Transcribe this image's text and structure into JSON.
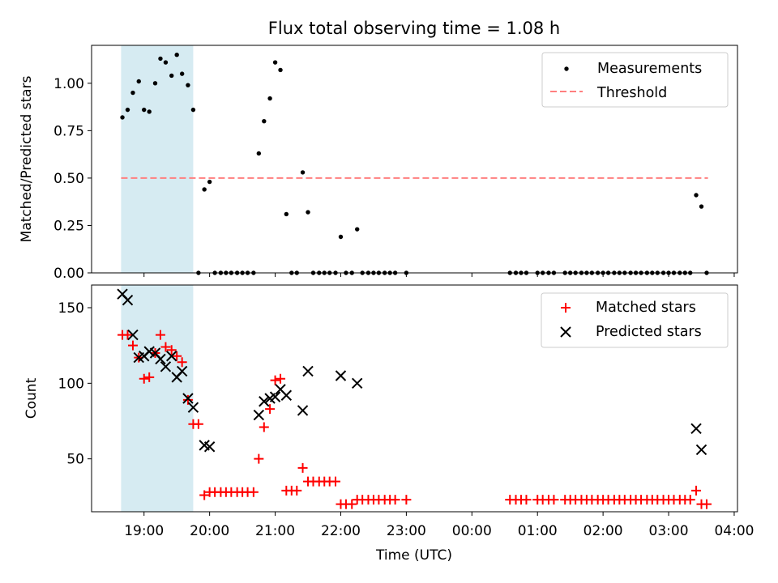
{
  "title": "Flux total observing time = 1.08 h",
  "colors": {
    "measurement": "#000000",
    "threshold": "#ff7f7f",
    "matched": "#ff0000",
    "predicted": "#000000",
    "shade": "#add8e6"
  },
  "xaxis": {
    "label": "Time (UTC)",
    "ticks": [
      "19:00",
      "20:00",
      "21:00",
      "22:00",
      "23:00",
      "00:00",
      "01:00",
      "02:00",
      "03:00",
      "04:00"
    ],
    "tick_hours": [
      19,
      20,
      21,
      22,
      23,
      24,
      25,
      26,
      27,
      28
    ],
    "range": [
      18.2,
      28.05
    ],
    "shaded_interval": [
      18.65,
      19.75
    ]
  },
  "chart_data": [
    {
      "type": "scatter",
      "id": "ratio",
      "ylabel": "Matched/Predicted stars",
      "ylim": [
        0,
        1.2
      ],
      "yticks": [
        "0.00",
        "0.25",
        "0.50",
        "0.75",
        "1.00"
      ],
      "ytick_values": [
        0,
        0.25,
        0.5,
        0.75,
        1.0
      ],
      "legend_position": "upper right",
      "legend": {
        "measurements": "Measurements",
        "threshold": "Threshold"
      },
      "threshold": {
        "value": 0.5,
        "x_start": 18.65,
        "x_end": 27.6
      },
      "series": [
        {
          "name": "Measurements",
          "x": [
            18.67,
            18.75,
            18.83,
            18.92,
            19.0,
            19.08,
            19.17,
            19.25,
            19.33,
            19.42,
            19.5,
            19.58,
            19.67,
            19.75,
            19.83,
            19.92,
            20.0,
            20.08,
            20.17,
            20.25,
            20.33,
            20.42,
            20.5,
            20.58,
            20.67,
            20.75,
            20.83,
            20.92,
            21.0,
            21.08,
            21.17,
            21.25,
            21.33,
            21.42,
            21.5,
            21.58,
            21.67,
            21.75,
            21.83,
            21.92,
            22.0,
            22.08,
            22.17,
            22.25,
            22.33,
            22.42,
            22.5,
            22.58,
            22.67,
            22.75,
            22.83,
            23.0,
            24.58,
            24.67,
            24.75,
            24.83,
            25.0,
            25.08,
            25.17,
            25.25,
            25.42,
            25.5,
            25.58,
            25.67,
            25.75,
            25.83,
            25.92,
            26.0,
            26.08,
            26.17,
            26.25,
            26.33,
            26.42,
            26.5,
            26.58,
            26.67,
            26.75,
            26.83,
            26.92,
            27.0,
            27.08,
            27.17,
            27.25,
            27.33,
            27.42,
            27.5,
            27.58
          ],
          "y": [
            0.82,
            0.86,
            0.95,
            1.01,
            0.86,
            0.85,
            1.0,
            1.13,
            1.11,
            1.04,
            1.15,
            1.05,
            0.99,
            0.86,
            0.0,
            0.44,
            0.48,
            0.0,
            0.0,
            0.0,
            0.0,
            0.0,
            0.0,
            0.0,
            0.0,
            0.63,
            0.8,
            0.92,
            1.11,
            1.07,
            0.31,
            0.0,
            0.0,
            0.53,
            0.32,
            0.0,
            0.0,
            0.0,
            0.0,
            0.0,
            0.19,
            0.0,
            0.0,
            0.23,
            0.0,
            0.0,
            0.0,
            0.0,
            0.0,
            0.0,
            0.0,
            0.0,
            0.0,
            0.0,
            0.0,
            0.0,
            0.0,
            0.0,
            0.0,
            0.0,
            0.0,
            0.0,
            0.0,
            0.0,
            0.0,
            0.0,
            0.0,
            0.0,
            0.0,
            0.0,
            0.0,
            0.0,
            0.0,
            0.0,
            0.0,
            0.0,
            0.0,
            0.0,
            0.0,
            0.0,
            0.0,
            0.0,
            0.0,
            0.0,
            0.41,
            0.35,
            0.0
          ]
        }
      ]
    },
    {
      "type": "scatter",
      "id": "count",
      "ylabel": "Count",
      "ylim": [
        15,
        165
      ],
      "yticks": [
        "50",
        "100",
        "150"
      ],
      "ytick_values": [
        50,
        100,
        150
      ],
      "legend_position": "upper right",
      "legend": {
        "matched": "Matched stars",
        "predicted": "Predicted stars"
      },
      "series": [
        {
          "name": "Matched stars",
          "marker": "+",
          "x": [
            18.67,
            18.75,
            18.83,
            18.92,
            19.0,
            19.08,
            19.17,
            19.25,
            19.33,
            19.42,
            19.5,
            19.58,
            19.67,
            19.75,
            19.83,
            19.92,
            20.0,
            20.08,
            20.17,
            20.25,
            20.33,
            20.42,
            20.5,
            20.58,
            20.67,
            20.75,
            20.83,
            20.92,
            21.0,
            21.08,
            21.17,
            21.25,
            21.33,
            21.42,
            21.5,
            21.58,
            21.67,
            21.75,
            21.83,
            21.92,
            22.0,
            22.08,
            22.17,
            22.25,
            22.33,
            22.42,
            22.5,
            22.58,
            22.67,
            22.75,
            22.83,
            23.0,
            24.58,
            24.67,
            24.75,
            24.83,
            25.0,
            25.08,
            25.17,
            25.25,
            25.42,
            25.5,
            25.58,
            25.67,
            25.75,
            25.83,
            25.92,
            26.0,
            26.08,
            26.17,
            26.25,
            26.33,
            26.42,
            26.5,
            26.58,
            26.67,
            26.75,
            26.83,
            26.92,
            27.0,
            27.08,
            27.17,
            27.25,
            27.33,
            27.42,
            27.5,
            27.58
          ],
          "y": [
            132,
            132,
            125,
            117,
            103,
            104,
            120,
            132,
            124,
            122,
            118,
            114,
            89,
            73,
            73,
            26,
            28,
            28,
            28,
            28,
            28,
            28,
            28,
            28,
            28,
            50,
            71,
            83,
            102,
            103,
            29,
            29,
            29,
            44,
            35,
            35,
            35,
            35,
            35,
            35,
            20,
            20,
            20,
            23,
            23,
            23,
            23,
            23,
            23,
            23,
            23,
            23,
            23,
            23,
            23,
            23,
            23,
            23,
            23,
            23,
            23,
            23,
            23,
            23,
            23,
            23,
            23,
            23,
            23,
            23,
            23,
            23,
            23,
            23,
            23,
            23,
            23,
            23,
            23,
            23,
            23,
            23,
            23,
            23,
            29,
            20,
            20
          ]
        },
        {
          "name": "Predicted stars",
          "marker": "x",
          "x": [
            18.67,
            18.75,
            18.83,
            18.92,
            19.0,
            19.08,
            19.17,
            19.25,
            19.33,
            19.42,
            19.5,
            19.58,
            19.67,
            19.75,
            19.92,
            20.0,
            20.75,
            20.83,
            20.92,
            21.0,
            21.08,
            21.17,
            21.42,
            21.5,
            22.0,
            22.25,
            27.42,
            27.5
          ],
          "y": [
            159,
            155,
            132,
            117,
            118,
            121,
            120,
            116,
            111,
            118,
            104,
            108,
            90,
            84,
            59,
            58,
            79,
            88,
            90,
            91,
            96,
            92,
            82,
            108,
            105,
            100,
            70,
            56
          ]
        }
      ]
    }
  ]
}
